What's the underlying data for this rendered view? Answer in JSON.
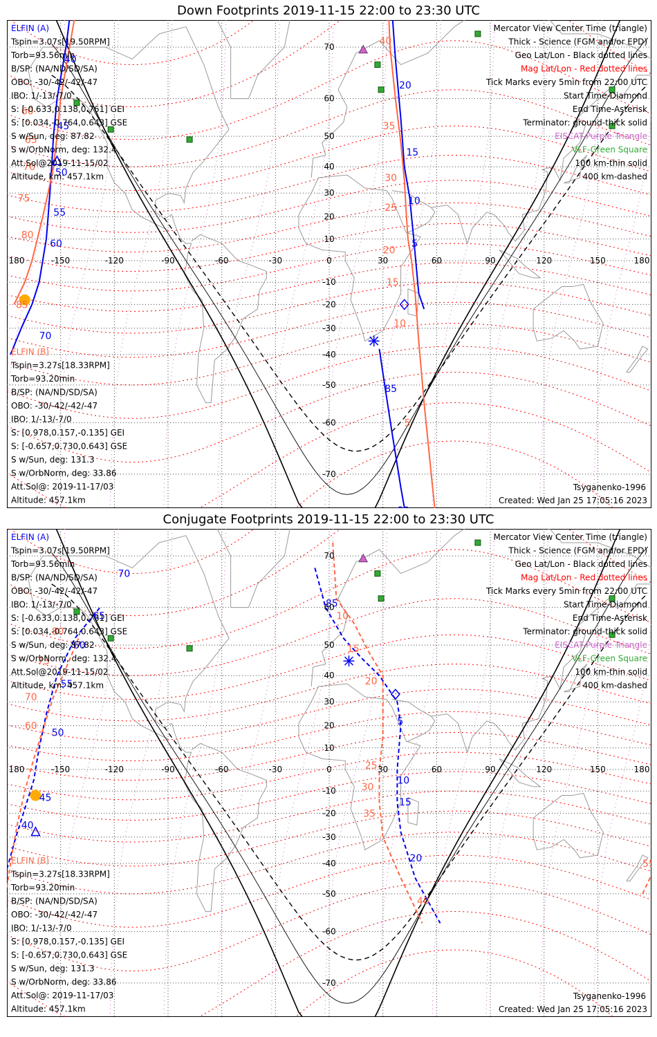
{
  "panels": [
    {
      "title": "Down Footprints 2019-11-15 22:00 to 23:30 UTC",
      "left_info_a": [
        "ELFIN (A)",
        "Tspin=3.07s[19.50RPM]",
        "Torb=93.56min",
        "B/SP: (NA/ND/SD/SA)",
        "OBO: -30/-42/-42/-47",
        "IBO: 1/-13/-7/0",
        "S: [-0.633,0.138,0.761] GEI",
        "S: [0.034,-0.764,0.643] GSE",
        "S w/Sun, deg: 87.82",
        "S w/OrbNorm, deg: 132.4",
        "Att.Sol@2019-11-15/02",
        "Altitude, km: 457.1km"
      ],
      "left_info_b": [
        "ELFIN (B)",
        "Tspin=3.27s[18.33RPM]",
        "Torb=93.20min",
        "B/SP: (NA/ND/SD/SA)",
        "OBO: -30/-42/-42/-47",
        "IBO: 1/-13/-7/0",
        "S: [0.978,0.157,-0.135] GEI",
        "S: [-0.657,0.730,0.643] GSE",
        "S w/Sun, deg: 131.3",
        "S w/OrbNorm, deg: 33.86",
        "Att.Sol@: 2019-11-17/03",
        "Altitude: 457.1km"
      ],
      "footer_left": "Tsyganenko-1996",
      "footer_right": "Created: Wed Jan 25 17:05:16 2023",
      "track_a_labels": [
        "25",
        "20",
        "15",
        "10",
        "5",
        "85",
        "80",
        "40",
        "45",
        "50",
        "55",
        "60",
        "70"
      ],
      "track_b_labels": [
        "40",
        "35",
        "30",
        "25",
        "20",
        "15",
        "10",
        "5",
        "60",
        "65",
        "70",
        "75",
        "80",
        "85"
      ]
    },
    {
      "title": "Conjugate Footprints 2019-11-15 22:00 to 23:30 UTC",
      "left_info_a": [
        "ELFIN (A)",
        "Tspin=3.07s[19.50RPM]",
        "Torb=93.56min",
        "B/SP: (NA/ND/SD/SA)",
        "OBO: -30/-42/-42/-47",
        "IBO: 1/-13/-7/0",
        "S: [-0.633,0.138,0.761] GEI",
        "S: [0.034,-0.764,0.643] GSE",
        "S w/Sun, deg: 87.82",
        "S w/OrbNorm, deg: 132.4",
        "Att.Sol@2019-11-15/02",
        "Altitude, km: 457.1km"
      ],
      "left_info_b": [
        "ELFIN (B)",
        "Tspin=3.27s[18.33RPM]",
        "Torb=93.20min",
        "B/SP: (NA/ND/SD/SA)",
        "OBO: -30/-42/-42/-47",
        "IBO: 1/-13/-7/0",
        "S: [0.978,0.157,-0.135] GEI",
        "S: [-0.657,0.730,0.643] GSE",
        "S w/Sun, deg: 131.3",
        "S w/OrbNorm, deg: 33.86",
        "Att.Sol@: 2019-11-17/03",
        "Altitude: 457.1km"
      ],
      "footer_left": "Tsyganenko-1996",
      "footer_right": "Created: Wed Jan 25 17:05:16 2023",
      "track_a_labels": [
        "85",
        "5",
        "10",
        "15",
        "20",
        "70",
        "65",
        "60",
        "55",
        "50",
        "45",
        "40"
      ],
      "track_b_labels": [
        "10",
        "15",
        "20",
        "25",
        "30",
        "35",
        "40",
        "80",
        "75",
        "70",
        "60",
        "55"
      ]
    }
  ],
  "legend": [
    "Mercator View Center Time (triangle)",
    "Thick - Science (FGM and/or EPD)",
    "Geo Lat/Lon - Black dotted lines",
    "Mag Lat/Lon - Red dotted lines",
    "Tick Marks every 5min from 22:00 UTC",
    "Start Time-Diamond",
    "End Time-Asterisk",
    "Terminator: ground-thick solid",
    "EISCAT-Purple Triangle",
    "VLF-Green Square",
    "100 km-thin solid",
    "400 km-dashed"
  ],
  "legend_colors": [
    "#000000",
    "#000000",
    "#000000",
    "#ff0000",
    "#000000",
    "#000000",
    "#000000",
    "#000000",
    "#cc66cc",
    "#33aa33",
    "#000000",
    "#000000"
  ],
  "lon_labels": [
    "180",
    "-150",
    "-120",
    "-90",
    "-60",
    "-30",
    "0",
    "30",
    "60",
    "90",
    "120",
    "150",
    "180"
  ],
  "lat_labels": [
    "70",
    "60",
    "50",
    "40",
    "30",
    "20",
    "10",
    "-10",
    "-20",
    "-30",
    "-40",
    "-50",
    "-60",
    "-70"
  ],
  "colors": {
    "elfin_a": "#0000ee",
    "elfin_b": "#ff6644",
    "mag_grid": "#ff0000",
    "eiscat": "#cc66cc",
    "vlf": "#33aa33",
    "sun": "#ffaa00"
  }
}
